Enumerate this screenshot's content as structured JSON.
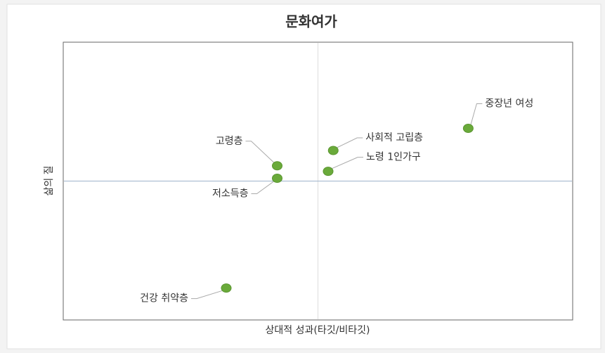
{
  "chart_data": {
    "type": "scatter",
    "title": "문화여가",
    "x_label": "상대적 성과(타깃/비타깃)",
    "y_label": "삶의 질",
    "point_labels": [
      "중장년 여성",
      "사회적 고립층",
      "노령 1인가구",
      "고령층",
      "저소득층",
      "건강 취약층"
    ],
    "x": [
      0.59,
      0.06,
      0.04,
      -0.16,
      -0.16,
      -0.36
    ],
    "values": [
      0.38,
      0.22,
      0.07,
      0.11,
      0.02,
      -0.77
    ],
    "color": "#6aaa3a",
    "xlim": [
      -1,
      1
    ],
    "ylim": [
      -1,
      1
    ],
    "reference_lines": {
      "x": 0,
      "y": 0
    }
  }
}
